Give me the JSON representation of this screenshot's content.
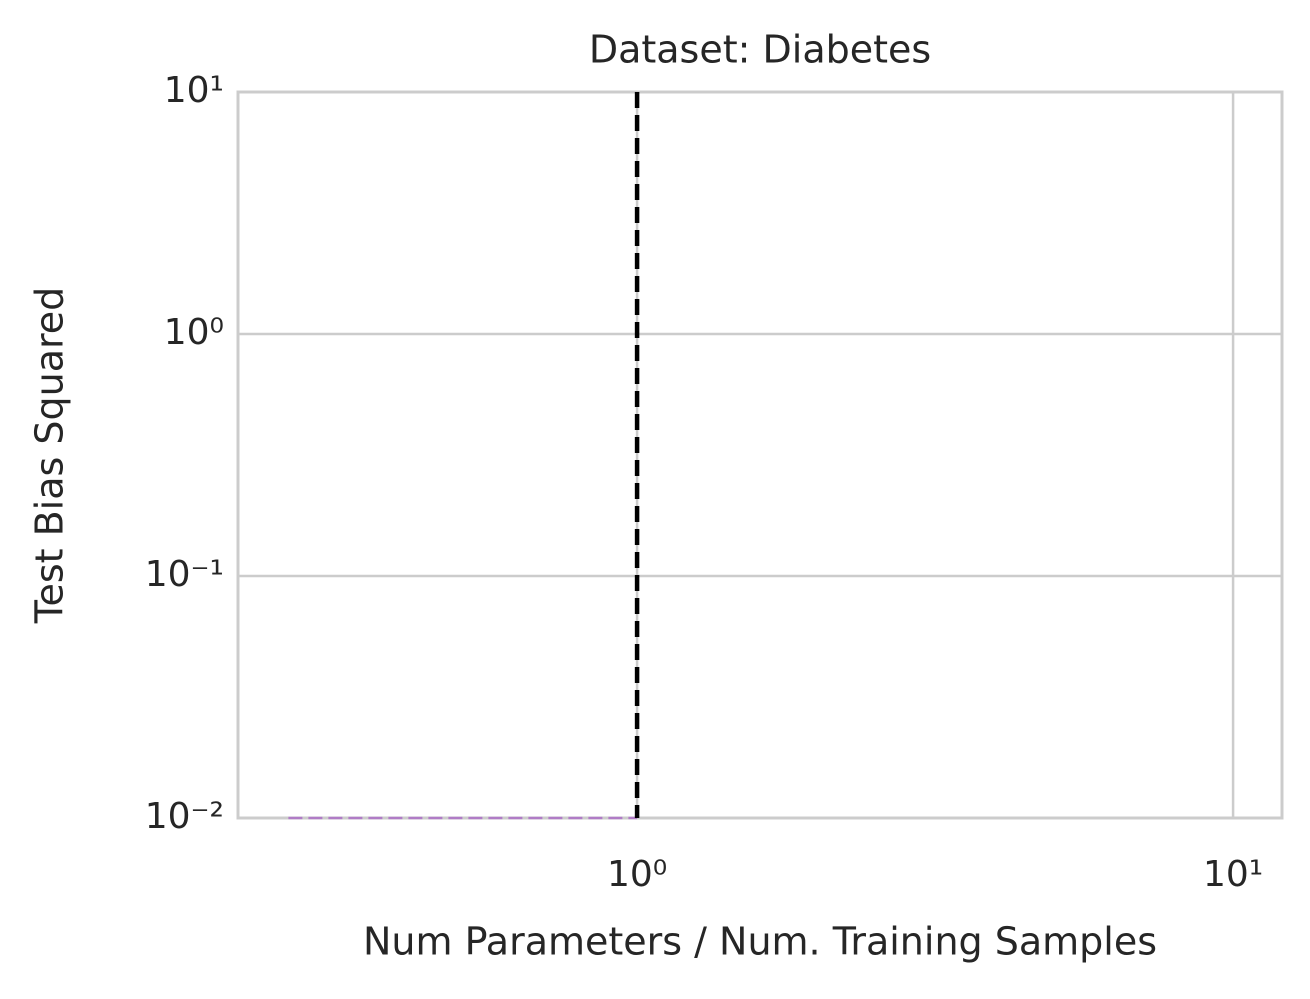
{
  "chart_data": {
    "type": "line",
    "title": "Dataset: Diabetes",
    "xlabel": "Num Parameters / Num. Training Samples",
    "ylabel": "Test Bias Squared",
    "xscale": "log",
    "yscale": "log",
    "xlim": [
      0.214,
      12.08
    ],
    "ylim": [
      0.01,
      10
    ],
    "xticks": [
      {
        "value": 1,
        "label": "10⁰"
      },
      {
        "value": 10,
        "label": "10¹"
      }
    ],
    "yticks": [
      {
        "value": 0.01,
        "label": "10⁻²"
      },
      {
        "value": 0.1,
        "label": "10⁻¹"
      },
      {
        "value": 1,
        "label": "10⁰"
      },
      {
        "value": 10,
        "label": "10¹"
      }
    ],
    "grid": true,
    "series": [
      {
        "color": "#b07cc6",
        "style": "dashed",
        "x": [
          0.26,
          0.4,
          0.6,
          0.8,
          1.0
        ],
        "values": [
          0.01,
          0.01,
          0.01,
          0.01,
          0.01
        ]
      }
    ],
    "vlines": [
      {
        "x": 1,
        "color": "#000000",
        "style": "dashed"
      }
    ]
  }
}
